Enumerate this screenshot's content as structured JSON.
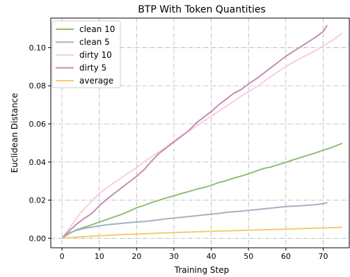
{
  "chart_data": {
    "type": "line",
    "title": "BTP With Token Quantities",
    "xlabel": "Training Step",
    "ylabel": "Euclidean Distance",
    "xlim": [
      -3,
      77
    ],
    "ylim": [
      -0.005,
      0.1155
    ],
    "xticks": [
      0,
      10,
      20,
      30,
      40,
      50,
      60,
      70
    ],
    "yticks": [
      0.0,
      0.02,
      0.04,
      0.06,
      0.08,
      0.1
    ],
    "xtick_labels": [
      "0",
      "10",
      "20",
      "30",
      "40",
      "50",
      "60",
      "70"
    ],
    "ytick_labels": [
      "0.00",
      "0.02",
      "0.04",
      "0.06",
      "0.08",
      "0.10"
    ],
    "grid": true,
    "legend_position": "top-left",
    "series": [
      {
        "name": "clean 10",
        "color": "#8fbf71",
        "x": [
          0,
          2,
          4,
          6,
          8,
          10,
          12,
          14,
          16,
          18,
          20,
          22,
          24,
          26,
          28,
          30,
          32,
          34,
          36,
          38,
          40,
          42,
          44,
          46,
          48,
          50,
          52,
          54,
          56,
          58,
          60,
          62,
          64,
          66,
          68,
          70,
          72,
          75
        ],
        "y": [
          0.0,
          0.0025,
          0.0045,
          0.0058,
          0.007,
          0.0085,
          0.0098,
          0.0112,
          0.0125,
          0.0142,
          0.016,
          0.0172,
          0.0187,
          0.0199,
          0.0212,
          0.0222,
          0.0235,
          0.0245,
          0.0257,
          0.0266,
          0.0278,
          0.0292,
          0.0302,
          0.0315,
          0.0326,
          0.0338,
          0.0352,
          0.0366,
          0.0374,
          0.0386,
          0.0398,
          0.0412,
          0.0424,
          0.0436,
          0.0448,
          0.0462,
          0.0474,
          0.0497
        ]
      },
      {
        "name": "clean 5",
        "color": "#a4b2c2",
        "x": [
          0,
          2,
          4,
          6,
          8,
          10,
          12,
          14,
          16,
          18,
          20,
          22,
          24,
          26,
          28,
          30,
          32,
          34,
          36,
          38,
          40,
          42,
          44,
          46,
          48,
          50,
          52,
          54,
          56,
          58,
          60,
          62,
          64,
          66,
          68,
          70,
          71
        ],
        "y": [
          0.0,
          0.0028,
          0.0042,
          0.0052,
          0.0058,
          0.0065,
          0.0071,
          0.0074,
          0.0078,
          0.0082,
          0.0085,
          0.0088,
          0.0092,
          0.0097,
          0.0102,
          0.0106,
          0.011,
          0.0114,
          0.0118,
          0.0122,
          0.0126,
          0.013,
          0.0136,
          0.0139,
          0.0142,
          0.0146,
          0.015,
          0.0154,
          0.0158,
          0.0162,
          0.0166,
          0.0168,
          0.017,
          0.0173,
          0.0176,
          0.0182,
          0.0186
        ]
      },
      {
        "name": "dirty 10",
        "color": "#f6d0dc",
        "x": [
          0,
          3,
          5,
          8,
          10,
          12,
          15,
          18,
          20,
          23,
          25,
          28,
          30,
          33,
          35,
          38,
          40,
          43,
          45,
          48,
          50,
          53,
          55,
          58,
          60,
          63,
          65,
          68,
          70,
          73,
          75
        ],
        "y": [
          0.0,
          0.008,
          0.0135,
          0.0195,
          0.0235,
          0.0265,
          0.0305,
          0.0345,
          0.037,
          0.0415,
          0.044,
          0.048,
          0.051,
          0.055,
          0.0575,
          0.0615,
          0.064,
          0.068,
          0.0705,
          0.0745,
          0.077,
          0.0805,
          0.0835,
          0.0875,
          0.09,
          0.0935,
          0.0955,
          0.0985,
          0.101,
          0.1045,
          0.1075
        ]
      },
      {
        "name": "dirty 5",
        "color": "#c38eb5",
        "x": [
          0,
          2,
          4,
          6,
          8,
          10,
          12,
          14,
          16,
          18,
          20,
          22,
          24,
          26,
          28,
          30,
          32,
          34,
          36,
          38,
          40,
          42,
          44,
          46,
          48,
          50,
          52,
          54,
          56,
          58,
          60,
          62,
          64,
          66,
          68,
          70,
          71
        ],
        "y": [
          0.0,
          0.004,
          0.0075,
          0.0105,
          0.013,
          0.017,
          0.0205,
          0.0235,
          0.0265,
          0.0295,
          0.0325,
          0.036,
          0.0405,
          0.0445,
          0.0475,
          0.0505,
          0.0535,
          0.0565,
          0.0605,
          0.0635,
          0.0665,
          0.07,
          0.073,
          0.076,
          0.078,
          0.081,
          0.0835,
          0.0865,
          0.0895,
          0.0925,
          0.0955,
          0.098,
          0.1005,
          0.103,
          0.1055,
          0.1085,
          0.1115
        ]
      },
      {
        "name": "average",
        "color": "#f7cb6b",
        "x": [
          0,
          5,
          10,
          15,
          20,
          25,
          30,
          35,
          40,
          45,
          50,
          55,
          60,
          65,
          70,
          75
        ],
        "y": [
          0.0,
          0.0007,
          0.0013,
          0.0018,
          0.0022,
          0.0026,
          0.003,
          0.0033,
          0.0036,
          0.0039,
          0.0042,
          0.0045,
          0.0048,
          0.0051,
          0.0054,
          0.0057
        ]
      }
    ]
  }
}
